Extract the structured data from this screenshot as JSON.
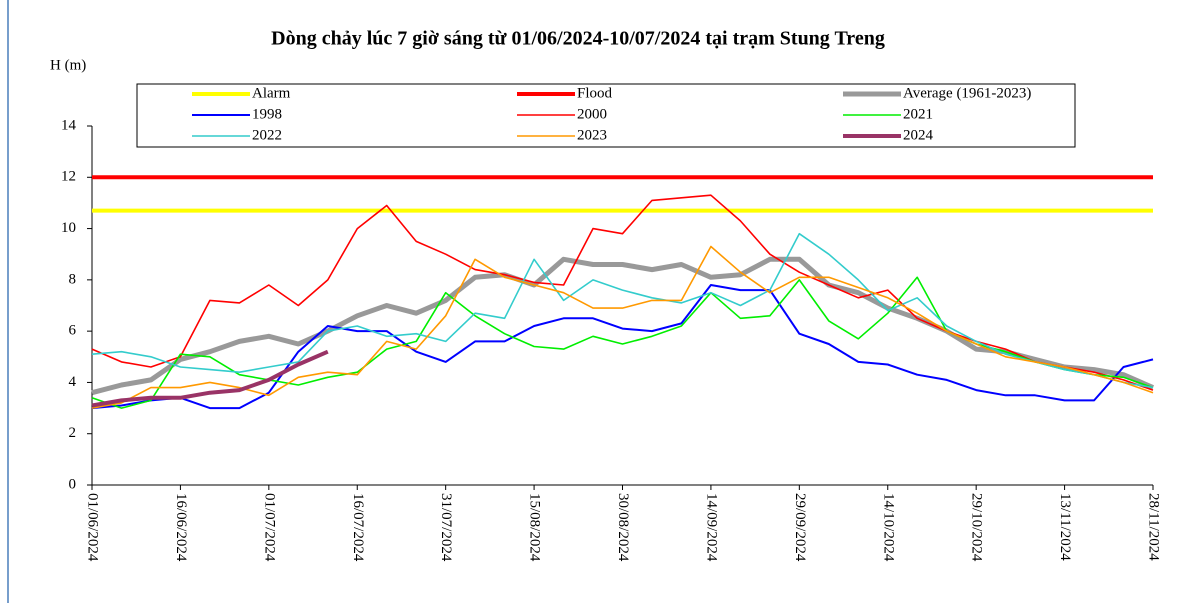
{
  "chart_data": {
    "type": "line",
    "title": "Dòng chảy lúc 7 giờ sáng từ 01/06/2024-10/07/2024 tại trạm Stung Treng",
    "ylabel": "H (m)",
    "x": [
      "01/06/2024",
      "06/06/2024",
      "11/06/2024",
      "16/06/2024",
      "21/06/2024",
      "26/06/2024",
      "01/07/2024",
      "06/07/2024",
      "11/07/2024",
      "16/07/2024",
      "21/07/2024",
      "26/07/2024",
      "31/07/2024",
      "05/08/2024",
      "10/08/2024",
      "15/08/2024",
      "20/08/2024",
      "25/08/2024",
      "30/08/2024",
      "04/09/2024",
      "09/09/2024",
      "14/09/2024",
      "19/09/2024",
      "24/09/2024",
      "29/09/2024",
      "04/10/2024",
      "09/10/2024",
      "14/10/2024",
      "19/10/2024",
      "24/10/2024",
      "29/10/2024",
      "03/11/2024",
      "08/11/2024",
      "13/11/2024",
      "18/11/2024",
      "23/11/2024",
      "28/11/2024"
    ],
    "xlim": [
      "01/06/2024",
      "28/11/2024"
    ],
    "xticks": [
      "01/06/2024",
      "16/06/2024",
      "01/07/2024",
      "16/07/2024",
      "31/07/2024",
      "15/08/2024",
      "30/08/2024",
      "14/09/2024",
      "29/09/2024",
      "14/10/2024",
      "29/10/2024",
      "13/11/2024",
      "28/11/2024"
    ],
    "ylim": [
      0,
      14
    ],
    "yticks": [
      0,
      2,
      4,
      6,
      8,
      10,
      12,
      14
    ],
    "series": [
      {
        "name": "Alarm",
        "color": "#ffff00",
        "values": [
          10.7,
          10.7,
          10.7,
          10.7,
          10.7,
          10.7,
          10.7,
          10.7,
          10.7,
          10.7,
          10.7,
          10.7,
          10.7,
          10.7,
          10.7,
          10.7,
          10.7,
          10.7,
          10.7,
          10.7,
          10.7,
          10.7,
          10.7,
          10.7,
          10.7,
          10.7,
          10.7,
          10.7,
          10.7,
          10.7,
          10.7,
          10.7,
          10.7,
          10.7,
          10.7,
          10.7,
          10.7
        ]
      },
      {
        "name": "Flood",
        "color": "#ff0000",
        "values": [
          12,
          12,
          12,
          12,
          12,
          12,
          12,
          12,
          12,
          12,
          12,
          12,
          12,
          12,
          12,
          12,
          12,
          12,
          12,
          12,
          12,
          12,
          12,
          12,
          12,
          12,
          12,
          12,
          12,
          12,
          12,
          12,
          12,
          12,
          12,
          12,
          12
        ]
      },
      {
        "name": "Average (1961-2023)",
        "color": "#999999",
        "values": [
          3.6,
          3.9,
          4.1,
          4.9,
          5.2,
          5.6,
          5.8,
          5.5,
          6.0,
          6.6,
          7.0,
          6.7,
          7.2,
          8.1,
          8.2,
          7.8,
          8.8,
          8.6,
          8.6,
          8.4,
          8.6,
          8.1,
          8.2,
          8.8,
          8.8,
          7.8,
          7.5,
          6.9,
          6.5,
          6.0,
          5.3,
          5.2,
          4.9,
          4.6,
          4.5,
          4.3,
          3.8
        ]
      },
      {
        "name": "1998",
        "color": "#0000ff",
        "values": [
          3.0,
          3.1,
          3.3,
          3.4,
          3.0,
          3.0,
          3.6,
          5.2,
          6.2,
          6.0,
          6.0,
          5.2,
          4.8,
          5.6,
          5.6,
          6.2,
          6.5,
          6.5,
          6.1,
          6.0,
          6.3,
          7.8,
          7.6,
          7.6,
          5.9,
          5.5,
          4.8,
          4.7,
          4.3,
          4.1,
          3.7,
          3.5,
          3.5,
          3.3,
          3.3,
          4.6,
          4.9
        ]
      },
      {
        "name": "2000",
        "color": "#ff0000",
        "values": [
          5.3,
          4.8,
          4.6,
          5.0,
          7.2,
          7.1,
          7.8,
          7.0,
          8.0,
          10.0,
          10.9,
          9.5,
          9.0,
          8.4,
          8.2,
          7.9,
          7.8,
          10.0,
          9.8,
          11.1,
          11.2,
          11.3,
          10.3,
          9.0,
          8.3,
          7.8,
          7.3,
          7.6,
          6.5,
          6.0,
          5.6,
          5.3,
          4.8,
          4.6,
          4.4,
          4.1,
          3.7
        ]
      },
      {
        "name": "2021",
        "color": "#00ee00",
        "values": [
          3.4,
          3.0,
          3.3,
          5.1,
          5.0,
          4.3,
          4.1,
          3.9,
          4.2,
          4.4,
          5.3,
          5.6,
          7.5,
          6.6,
          5.9,
          5.4,
          5.3,
          5.8,
          5.5,
          5.8,
          6.2,
          7.5,
          6.5,
          6.6,
          8.0,
          6.4,
          5.7,
          6.7,
          8.1,
          6.0,
          5.5,
          5.2,
          4.8,
          4.5,
          4.3,
          4.2,
          3.8
        ]
      },
      {
        "name": "2022",
        "color": "#33cccc",
        "values": [
          5.1,
          5.2,
          5.0,
          4.6,
          4.5,
          4.4,
          4.6,
          4.8,
          6.0,
          6.2,
          5.8,
          5.9,
          5.6,
          6.7,
          6.5,
          8.8,
          7.2,
          8.0,
          7.6,
          7.3,
          7.1,
          7.5,
          7.0,
          7.6,
          9.8,
          9.0,
          8.0,
          6.8,
          7.3,
          6.2,
          5.6,
          5.1,
          4.8,
          4.5,
          4.3,
          4.0,
          3.8
        ]
      },
      {
        "name": "2023",
        "color": "#ff9900",
        "values": [
          3.0,
          3.2,
          3.8,
          3.8,
          4.0,
          3.8,
          3.5,
          4.2,
          4.4,
          4.3,
          5.6,
          5.3,
          6.6,
          8.8,
          8.1,
          7.8,
          7.5,
          6.9,
          6.9,
          7.2,
          7.2,
          9.3,
          8.3,
          7.5,
          8.1,
          8.1,
          7.7,
          7.3,
          6.7,
          6.0,
          5.5,
          5.0,
          4.8,
          4.6,
          4.3,
          4.0,
          3.6
        ]
      },
      {
        "name": "2024",
        "color": "#993366",
        "values": [
          3.1,
          3.3,
          3.4,
          3.4,
          3.6,
          3.7,
          4.1,
          4.7,
          5.2,
          null,
          null,
          null,
          null,
          null,
          null,
          null,
          null,
          null,
          null,
          null,
          null,
          null,
          null,
          null,
          null,
          null,
          null,
          null,
          null,
          null,
          null,
          null,
          null,
          null,
          null,
          null,
          null
        ]
      }
    ]
  }
}
